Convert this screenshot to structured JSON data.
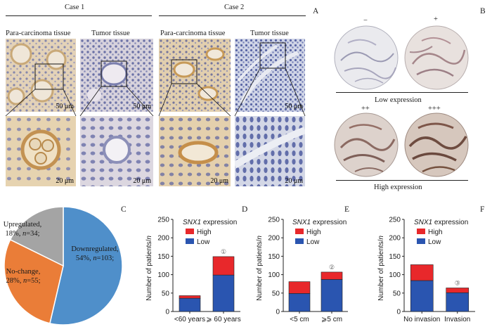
{
  "panel_A": {
    "letter": "A",
    "case1_label": "Case 1",
    "case2_label": "Case 2",
    "col_labels": [
      "Para-carcinoma tissue",
      "Tumor tissue",
      "Para-carcinoma tissue",
      "Tumor tissue"
    ],
    "scale_top": "50 μm",
    "scale_bottom": "20 μm"
  },
  "panel_B": {
    "letter": "B",
    "grades": [
      "−",
      "+",
      "++",
      "+++"
    ],
    "low_label": "Low expression",
    "high_label": "High expression"
  },
  "colors": {
    "downregulated": "#4f8fca",
    "nochange": "#ea7d38",
    "upregulated": "#a4a4a4",
    "high": "#e8282b",
    "low": "#2a55b0"
  },
  "chart_data": [
    {
      "panel": "C",
      "type": "pie",
      "slices": [
        {
          "label": "Downregulated",
          "percent": "54%",
          "n": 103
        },
        {
          "label": "No-change",
          "percent": "28%",
          "n": 55
        },
        {
          "label": "Upregulated",
          "percent": "18%",
          "n": 34
        }
      ]
    },
    {
      "panel": "D",
      "type": "bar",
      "stacked": true,
      "legend_title": "SNX1 expression",
      "legend_title_italic": "SNX1",
      "legend_title_rest": " expression",
      "ylabel": "Number of patients/",
      "ylabel_italic": "n",
      "ylim": [
        0,
        250
      ],
      "yticks": [
        "0",
        "50",
        "100",
        "150",
        "200",
        "250"
      ],
      "categories": [
        "<60 years",
        "⩾ 60 years"
      ],
      "series": [
        {
          "name": "Low",
          "values": [
            36,
            99
          ]
        },
        {
          "name": "High",
          "values": [
            7,
            50
          ]
        }
      ],
      "marker": "①"
    },
    {
      "panel": "E",
      "type": "bar",
      "stacked": true,
      "legend_title": "SNX1 expression",
      "ylabel": "Number of patients/",
      "ylabel_italic": "n",
      "ylim": [
        0,
        250
      ],
      "yticks": [
        "0",
        "50",
        "100",
        "150",
        "200",
        "250"
      ],
      "categories": [
        "<5 cm",
        "⩾5 cm"
      ],
      "series": [
        {
          "name": "Low",
          "values": [
            49,
            87
          ]
        },
        {
          "name": "High",
          "values": [
            32,
            20
          ]
        }
      ],
      "marker": "②"
    },
    {
      "panel": "F",
      "type": "bar",
      "stacked": true,
      "legend_title": "SNX1 expression",
      "legend_title_italic": "SNX1",
      "legend_title_rest": " expression",
      "ylabel": "Number of patients/",
      "ylabel_italic": "n",
      "ylim": [
        0,
        250
      ],
      "yticks": [
        "0",
        "50",
        "100",
        "150",
        "200",
        "250"
      ],
      "categories": [
        "No invasion",
        "Invasion"
      ],
      "series": [
        {
          "name": "Low",
          "values": [
            84,
            51
          ]
        },
        {
          "name": "High",
          "values": [
            43,
            13
          ]
        }
      ],
      "marker": "③"
    }
  ]
}
